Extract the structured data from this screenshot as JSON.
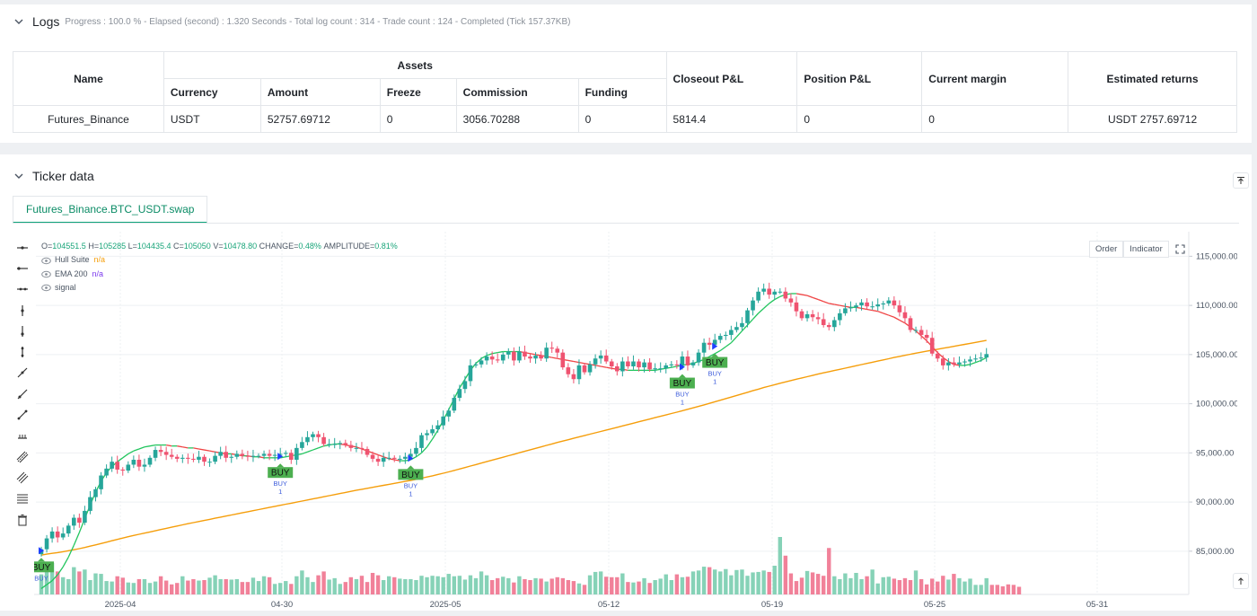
{
  "logs": {
    "title": "Logs",
    "stats": "Progress : 100.0 % - Elapsed (second) : 1.320  Seconds - Total log count : 314 - Trade count : 124 - Completed (Tick 157.37KB)",
    "table": {
      "headers": {
        "name": "Name",
        "assets": "Assets",
        "currency": "Currency",
        "amount": "Amount",
        "freeze": "Freeze",
        "commission": "Commission",
        "funding": "Funding",
        "closeout": "Closeout P&L",
        "position": "Position P&L",
        "margin": "Current margin",
        "returns": "Estimated returns"
      },
      "row": {
        "name": "Futures_Binance",
        "currency": "USDT",
        "amount": "52757.69712",
        "freeze": "0",
        "commission": "3056.70288",
        "funding": "0",
        "closeout": "5814.4",
        "position": "0",
        "margin": "0",
        "returns": "USDT 2757.69712"
      }
    }
  },
  "ticker": {
    "title": "Ticker data",
    "tab": "Futures_Binance.BTC_USDT.swap",
    "buttons": {
      "order": "Order",
      "indicator": "Indicator"
    },
    "legend": {
      "ohlc": {
        "o_lbl": "O=",
        "o": "104551.5",
        "h_lbl": "H=",
        "h": "105285",
        "l_lbl": "L=",
        "l": "104435.4",
        "c_lbl": "C=",
        "c": "105050",
        "v_lbl": "V=",
        "v": "10478.80",
        "chg_lbl": "CHANGE=",
        "chg": "0.48%",
        "amp_lbl": "AMPLITUDE=",
        "amp": "0.81%"
      },
      "hull": {
        "name": "Hull Suite",
        "value": "n/a"
      },
      "ema": {
        "name": "EMA 200",
        "value": "n/a"
      },
      "signal": {
        "name": "signal"
      }
    }
  },
  "chart_data": {
    "type": "candlestick",
    "x_ticks": [
      "2025-04",
      "04-30",
      "2025-05",
      "05-12",
      "05-19",
      "05-25",
      "05-31"
    ],
    "y_ticks": [
      "115,000.00",
      "110,000.00",
      "105,000.00",
      "100,000.00",
      "95,000.00",
      "90,000.00",
      "85,000.00"
    ],
    "y_tick_values": [
      115000,
      110000,
      105000,
      100000,
      95000,
      90000,
      85000
    ],
    "ylim": [
      80600,
      117500
    ],
    "closes": [
      85200,
      86300,
      87000,
      86400,
      86800,
      87600,
      88400,
      87900,
      89100,
      90500,
      91300,
      92700,
      93400,
      94100,
      93300,
      93200,
      93800,
      94300,
      93600,
      93800,
      94500,
      95300,
      95100,
      94800,
      94600,
      94400,
      94500,
      94400,
      94300,
      94600,
      94100,
      94100,
      94700,
      95100,
      94500,
      94600,
      94900,
      94700,
      94600,
      94700,
      94700,
      94900,
      94700,
      94800,
      94900,
      95000,
      94300,
      95500,
      96100,
      96600,
      96900,
      96600,
      95900,
      95900,
      95900,
      96000,
      95800,
      95500,
      95500,
      95400,
      94800,
      94400,
      94100,
      94500,
      94500,
      94400,
      94400,
      94600,
      94900,
      95500,
      96800,
      97000,
      97400,
      97800,
      98700,
      99300,
      100600,
      101500,
      102300,
      103900,
      104000,
      104400,
      104800,
      104500,
      104400,
      105000,
      105300,
      104400,
      105300,
      104800,
      104600,
      104900,
      104600,
      105700,
      105600,
      105200,
      103700,
      103000,
      102500,
      103900,
      103200,
      104000,
      104600,
      104900,
      104300,
      103800,
      103300,
      104300,
      103800,
      104300,
      103700,
      104200,
      103500,
      103600,
      103600,
      103900,
      104000,
      103900,
      104800,
      103900,
      104200,
      105200,
      106200,
      106000,
      106500,
      106900,
      107000,
      107500,
      107800,
      108200,
      109500,
      110500,
      111400,
      111700,
      111100,
      111400,
      111400,
      110700,
      110300,
      109400,
      108700,
      109100,
      108800,
      108600,
      108000,
      107800,
      108500,
      109200,
      109700,
      109800,
      110000,
      110300,
      109900,
      109900,
      110100,
      110200,
      110500,
      110000,
      109300,
      108700,
      107500,
      107500,
      107000,
      106700,
      105100,
      104600,
      103900,
      104200,
      104000,
      104200,
      104300,
      104500,
      104600,
      104700,
      105050
    ],
    "volumes": [
      420,
      470,
      660,
      480,
      360,
      320,
      570,
      480,
      520,
      300,
      440,
      430,
      280,
      270,
      380,
      350,
      250,
      240,
      320,
      320,
      240,
      270,
      380,
      290,
      210,
      240,
      380,
      290,
      320,
      290,
      300,
      350,
      400,
      320,
      320,
      310,
      320,
      260,
      260,
      350,
      280,
      380,
      360,
      220,
      240,
      280,
      220,
      380,
      500,
      360,
      260,
      400,
      480,
      310,
      340,
      220,
      260,
      360,
      320,
      390,
      260,
      450,
      400,
      300,
      380,
      360,
      330,
      320,
      320,
      300,
      390,
      360,
      390,
      380,
      360,
      430,
      380,
      390,
      310,
      400,
      340,
      480,
      400,
      300,
      340,
      370,
      340,
      250,
      380,
      320,
      300,
      340,
      330,
      270,
      330,
      360,
      340,
      300,
      280,
      230,
      200,
      400,
      470,
      480,
      370,
      360,
      360,
      440,
      260,
      250,
      270,
      340,
      240,
      300,
      330,
      420,
      300,
      420,
      360,
      370,
      480,
      500,
      580,
      570,
      520,
      480,
      530,
      400,
      510,
      520,
      390,
      460,
      470,
      500,
      470,
      600,
      1200,
      810,
      440,
      280,
      350,
      490,
      460,
      430,
      390,
      970,
      380,
      320,
      440,
      340,
      450,
      320,
      380,
      520,
      230,
      360,
      370,
      330,
      300,
      340,
      300,
      500,
      320,
      210,
      330,
      270,
      390,
      310,
      430,
      340,
      270,
      330,
      200,
      200,
      340,
      200,
      200,
      170,
      210,
      200,
      160
    ],
    "hull": [
      81200,
      81600,
      82000,
      82600,
      83400,
      84400,
      85600,
      86900,
      88300,
      89700,
      91000,
      92100,
      93000,
      93600,
      94100,
      94500,
      94900,
      95200,
      95400,
      95600,
      95700,
      95800,
      95800,
      95800,
      95700,
      95700,
      95600,
      95500,
      95500,
      95400,
      95300,
      95200,
      95100,
      95000,
      94900,
      94900,
      94800,
      94700,
      94700,
      94600,
      94600,
      94500,
      94500,
      94500,
      94500,
      94600,
      94700,
      94800,
      94900,
      95100,
      95300,
      95500,
      95700,
      95800,
      95900,
      95900,
      95800,
      95700,
      95600,
      95400,
      95200,
      95000,
      94800,
      94600,
      94400,
      94300,
      94200,
      94200,
      94300,
      94600,
      95000,
      95600,
      96400,
      97300,
      98300,
      99400,
      100500,
      101600,
      102500,
      103400,
      104100,
      104600,
      104900,
      105100,
      105200,
      105300,
      105300,
      105300,
      105300,
      105200,
      105100,
      105000,
      104900,
      104800,
      104700,
      104600,
      104500,
      104400,
      104300,
      104200,
      104100,
      104000,
      103900,
      103800,
      103700,
      103600,
      103500,
      103500,
      103400,
      103400,
      103400,
      103400,
      103400,
      103400,
      103500,
      103600,
      103700,
      103800,
      103900,
      104000,
      104100,
      104300,
      104500,
      104800,
      105100,
      105400,
      105800,
      106200,
      106800,
      107400,
      108000,
      108600,
      109200,
      109700,
      110200,
      110600,
      110900,
      111100,
      111200,
      111200,
      111100,
      111000,
      110800,
      110600,
      110400,
      110200,
      110100,
      110000,
      109900,
      109800,
      109800,
      109700,
      109600,
      109500,
      109400,
      109200,
      109000,
      108800,
      108500,
      108200,
      107800,
      107400,
      106900,
      106400,
      105800,
      105200,
      104700,
      104300,
      104000,
      103900,
      103900,
      104000,
      104200,
      104400,
      104700
    ],
    "ema": [
      84600,
      84700,
      84780,
      84860,
      84950,
      85050,
      85150,
      85260,
      85380,
      85510,
      85640,
      85780,
      85920,
      86060,
      86200,
      86340,
      86470,
      86600,
      86720,
      86840,
      86960,
      87080,
      87200,
      87320,
      87440,
      87560,
      87680,
      87800,
      87910,
      88020,
      88130,
      88240,
      88350,
      88460,
      88570,
      88680,
      88790,
      88900,
      89010,
      89120,
      89230,
      89340,
      89450,
      89560,
      89670,
      89780,
      89880,
      89990,
      90100,
      90210,
      90320,
      90430,
      90540,
      90650,
      90760,
      90870,
      90980,
      91090,
      91200,
      91300,
      91400,
      91500,
      91600,
      91700,
      91800,
      91900,
      92000,
      92100,
      92200,
      92310,
      92430,
      92550,
      92670,
      92800,
      92930,
      93070,
      93210,
      93360,
      93510,
      93660,
      93810,
      93960,
      94110,
      94260,
      94410,
      94560,
      94710,
      94860,
      95010,
      95160,
      95310,
      95460,
      95610,
      95760,
      95910,
      96060,
      96200,
      96340,
      96480,
      96620,
      96760,
      96900,
      97040,
      97180,
      97320,
      97460,
      97600,
      97740,
      97880,
      98020,
      98160,
      98300,
      98440,
      98580,
      98720,
      98860,
      99000,
      99140,
      99290,
      99430,
      99580,
      99730,
      99880,
      100040,
      100200,
      100360,
      100520,
      100680,
      100840,
      101000,
      101160,
      101320,
      101480,
      101640,
      101790,
      101940,
      102080,
      102220,
      102360,
      102490,
      102620,
      102750,
      102880,
      103010,
      103140,
      103260,
      103380,
      103500,
      103620,
      103740,
      103860,
      103980,
      104100,
      104220,
      104340,
      104460,
      104580,
      104700,
      104810,
      104920,
      105030,
      105140,
      105240,
      105340,
      105440,
      105540,
      105640,
      105740,
      105840,
      105940,
      106040,
      106140,
      106240,
      106340,
      106440
    ],
    "signals": [
      {
        "label": "BUY",
        "sub": "BUY",
        "count": "",
        "index": 0
      },
      {
        "label": "BUY",
        "sub": "BUY",
        "count": "1",
        "index": 44
      },
      {
        "label": "BUY",
        "sub": "BUY",
        "count": "1",
        "index": 68
      },
      {
        "label": "BUY",
        "sub": "BUY",
        "count": "1",
        "index": 118
      },
      {
        "label": "BUY",
        "sub": "BUY",
        "count": "1",
        "index": 124
      }
    ],
    "colors": {
      "up": "#26a69a",
      "down": "#ef5370",
      "hull_up": "#22c55e",
      "hull_down": "#ef4444",
      "ema": "#f59e0b",
      "signal": "#4caf50",
      "grid": "#eef0f3"
    }
  }
}
